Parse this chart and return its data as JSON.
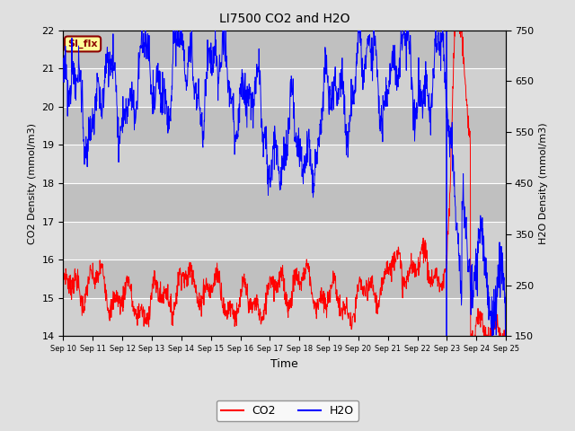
{
  "title": "LI7500 CO2 and H2O",
  "xlabel": "Time",
  "ylabel_left": "CO2 Density (mmol/m3)",
  "ylabel_right": "H2O Density (mmol/m3)",
  "ylim_left": [
    14.0,
    22.0
  ],
  "ylim_right": [
    150,
    750
  ],
  "yticks_left": [
    14.0,
    15.0,
    16.0,
    17.0,
    18.0,
    19.0,
    20.0,
    21.0,
    22.0
  ],
  "yticks_right": [
    150,
    250,
    350,
    450,
    550,
    650,
    750
  ],
  "xtick_labels": [
    "Sep 10",
    "Sep 11",
    "Sep 12",
    "Sep 13",
    "Sep 14",
    "Sep 15",
    "Sep 16",
    "Sep 17",
    "Sep 18",
    "Sep 19",
    "Sep 20",
    "Sep 21",
    "Sep 22",
    "Sep 23",
    "Sep 24",
    "Sep 25"
  ],
  "annotation_text": "SI_flx",
  "co2_color": "#FF0000",
  "h2o_color": "#0000FF",
  "background_color": "#E0E0E0",
  "band_colors": [
    "#D8D8D8",
    "#C8C8C8"
  ],
  "n_points": 1440,
  "seed": 7
}
